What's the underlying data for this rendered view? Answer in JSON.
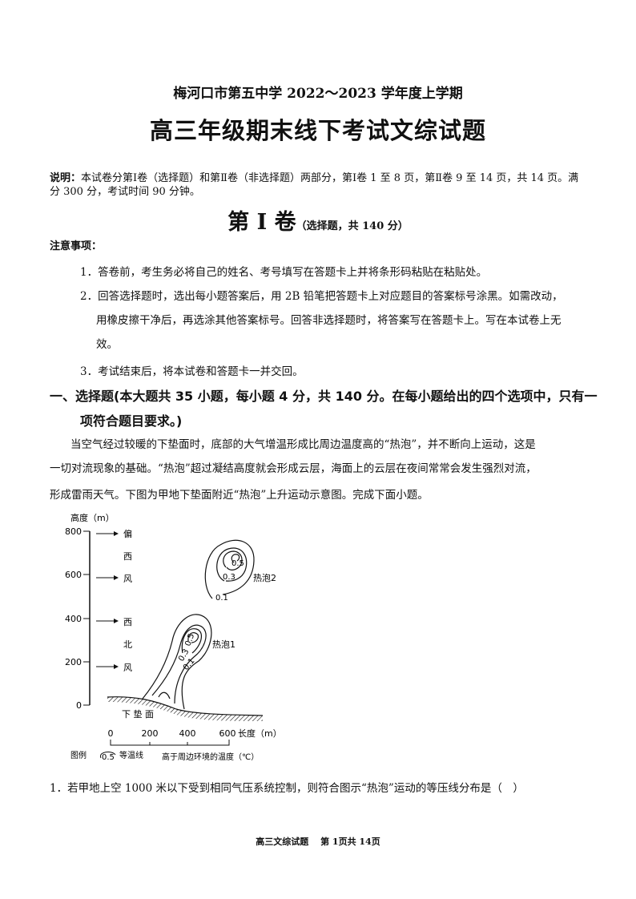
{
  "header": {
    "school_line": "梅河口市第五中学 2022～2023 学年度上学期",
    "title": "高三年级期末线下考试文综试题"
  },
  "explanation": {
    "label": "说明：",
    "text": "本试卷分第Ⅰ卷（选择题）和第Ⅱ卷（非选择题）两部分，第Ⅰ卷 1 至 8 页，第Ⅱ卷 9 至 14 页，共 14 页。满分 300 分，考试时间 90 分钟。"
  },
  "volume": {
    "title": "第 I 卷",
    "subtitle": "（选择题，共 140 分）"
  },
  "notes": {
    "heading": "注意事项：",
    "items": [
      "1．答卷前，考生务必将自己的姓名、考号填写在答题卡上并将条形码粘贴在粘贴处。",
      "2．回答选择题时，选出每小题答案后，用 2B 铅笔把答题卡上对应题目的答案标号涂黑。如需改动，",
      "用橡皮擦干净后，再选涂其他答案标号。回答非选择题时，将答案写在答题卡上。写在本试卷上无",
      "效。",
      "3．考试结束后，将本试卷和答题卡一并交回。"
    ]
  },
  "section": {
    "line1": "一、选择题(本大题共 35 小题，每小题 4 分，共 140 分。在每小题给出的四个选项中，只有一",
    "line2": "项符合题目要求。)"
  },
  "passage": [
    "当空气经过较暖的下垫面时，底部的大气增温形成比周边温度高的“热泡”，并不断向上运动，这是",
    "一切对流现象的基础。“热泡”超过凝结高度就会形成云层，海面上的云层在夜间常常会发生强烈对流，",
    "形成雷雨天气。下图为甲地下垫面附近“热泡”上升运动示意图。完成下面小题。"
  ],
  "figure": {
    "y_axis_label": "高度（m）",
    "y_ticks": [
      "800",
      "600",
      "400",
      "200",
      "0"
    ],
    "wind_upper": [
      "偏",
      "西",
      "风"
    ],
    "wind_lower": [
      "西",
      "北",
      "风"
    ],
    "bubble2_label": "热泡2",
    "bubble1_label": "热泡1",
    "contour_labels": [
      "0.5",
      "0.3",
      "0.1"
    ],
    "surface_label": "下 垫 面",
    "x_ticks": [
      "0",
      "200",
      "400",
      "600"
    ],
    "x_axis_label": "长度（m）",
    "legend_label": "图例",
    "legend_sample": "0.5",
    "legend_text1": "等温线",
    "legend_text2": "高于周边环境的温度（℃）"
  },
  "question1": "1．若甲地上空 1000 米以下受到相同气压系统控制，则符合图示“热泡”运动的等压线分布是（　）",
  "footer": "高三文综试题　 第 1页共 14页"
}
